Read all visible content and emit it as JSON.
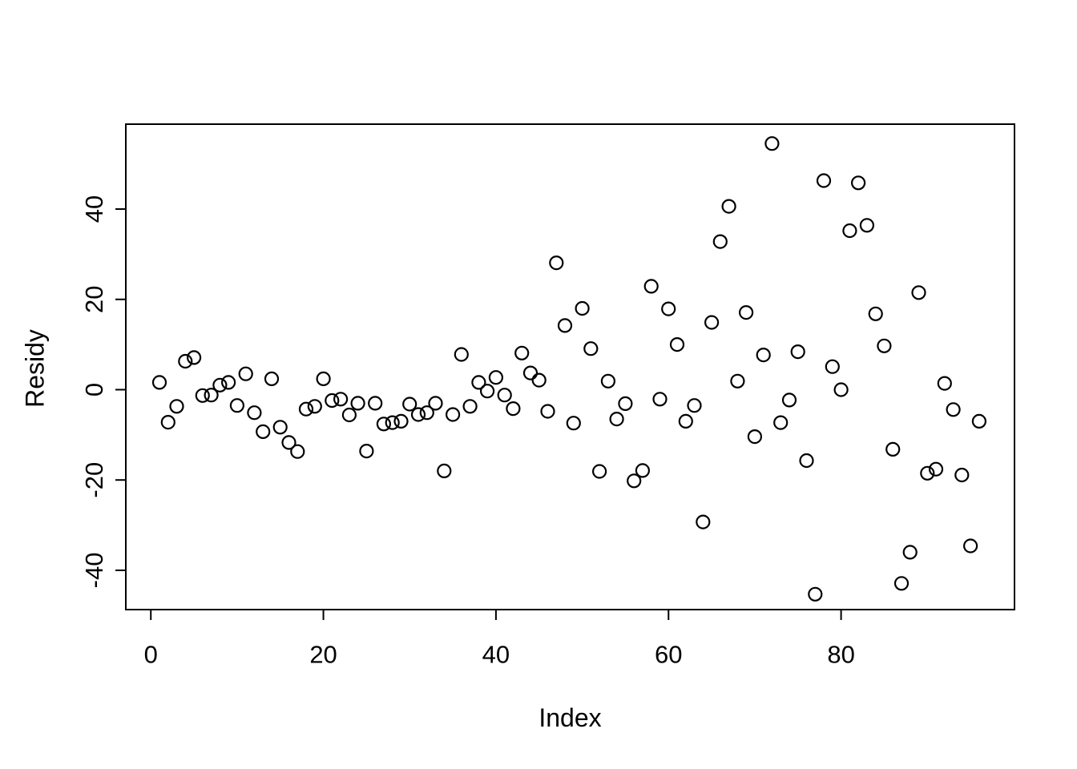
{
  "chart_data": {
    "type": "scatter",
    "title": "",
    "xlabel": "Index",
    "ylabel": "Residy",
    "xlim": [
      -2.9,
      100.1
    ],
    "ylim": [
      -48.7,
      58.8
    ],
    "xticks": [
      0,
      20,
      40,
      60,
      80
    ],
    "yticks": [
      -40,
      -20,
      0,
      20,
      40
    ],
    "grid": false,
    "legend": null,
    "marker": "open-circle",
    "marker_color": "#000000",
    "axis_color": "#000000",
    "background_color": "#ffffff",
    "x": [
      1,
      2,
      3,
      4,
      5,
      6,
      7,
      8,
      9,
      10,
      11,
      12,
      13,
      14,
      15,
      16,
      17,
      18,
      19,
      20,
      21,
      22,
      23,
      24,
      25,
      26,
      27,
      28,
      29,
      30,
      31,
      32,
      33,
      34,
      35,
      36,
      37,
      38,
      39,
      40,
      41,
      42,
      43,
      44,
      45,
      46,
      47,
      48,
      49,
      50,
      51,
      52,
      53,
      54,
      55,
      56,
      57,
      58,
      59,
      60,
      61,
      62,
      63,
      64,
      65,
      66,
      67,
      68,
      69,
      70,
      71,
      72,
      73,
      74,
      75,
      76,
      77,
      78,
      79,
      80,
      81,
      82,
      83,
      84,
      85,
      86,
      87,
      88,
      89,
      90,
      91,
      92,
      93,
      94,
      95,
      96
    ],
    "y": [
      1.6,
      -7.2,
      -3.7,
      6.3,
      7.1,
      -1.3,
      -1.2,
      1.0,
      1.6,
      -3.5,
      3.5,
      -5.1,
      -9.3,
      2.4,
      -8.3,
      -11.7,
      -13.7,
      -4.3,
      -3.7,
      2.4,
      -2.4,
      -2.1,
      -5.6,
      -3.0,
      -13.6,
      -3.0,
      -7.6,
      -7.3,
      -7.0,
      -3.2,
      -5.5,
      -5.1,
      -3.0,
      -18.0,
      -5.5,
      7.8,
      -3.7,
      1.6,
      -0.3,
      2.7,
      -1.2,
      -4.2,
      8.1,
      3.7,
      2.1,
      -4.8,
      28.1,
      14.2,
      -7.4,
      18.0,
      9.1,
      -18.1,
      1.9,
      -6.5,
      -3.1,
      -20.2,
      -17.9,
      22.9,
      -2.1,
      17.9,
      10.0,
      -7.0,
      -3.5,
      -29.3,
      14.9,
      32.8,
      40.6,
      1.9,
      17.1,
      -10.4,
      7.7,
      54.5,
      -7.3,
      -2.3,
      8.4,
      -15.7,
      -45.3,
      46.3,
      5.1,
      0.0,
      35.2,
      45.8,
      36.4,
      16.8,
      9.7,
      -13.2,
      -42.9,
      -36.0,
      21.5,
      -18.5,
      -17.6,
      1.4,
      -4.4,
      -18.9,
      -34.6,
      -7.0
    ]
  }
}
